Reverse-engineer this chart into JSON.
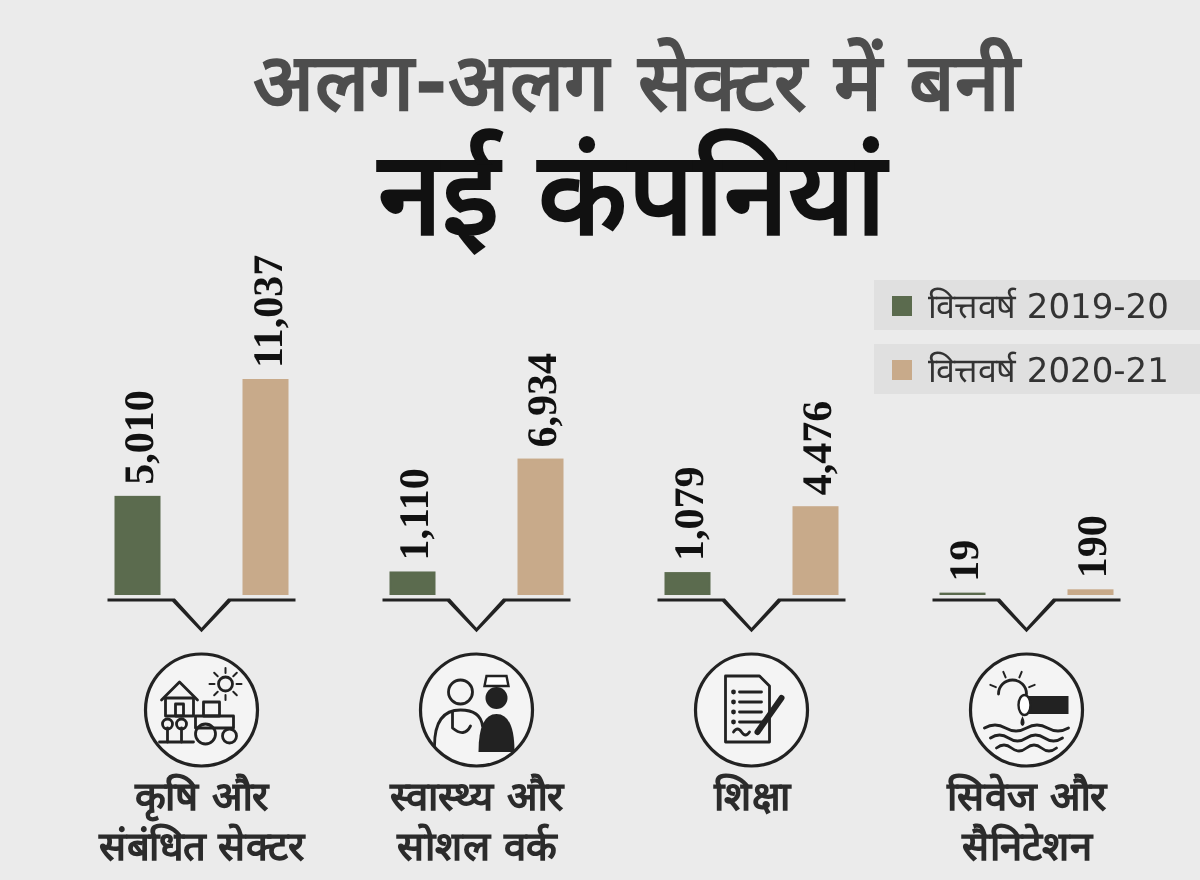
{
  "chart_data": {
    "type": "bar",
    "subtitle": "अलग-अलग सेक्टर में बनी",
    "title": "नई कंपनियां",
    "categories": [
      "कृषि और संबंधित सेक्टर",
      "स्वास्थ्य और सोशल वर्क",
      "शिक्षा",
      "सिवेज और सैनिटेशन"
    ],
    "series": [
      {
        "name": "वित्तवर्ष 2019-20",
        "color": "#5b6b4e",
        "values": [
          5010,
          1110,
          1079,
          19
        ],
        "value_labels": [
          "5,010",
          "1,110",
          "1,079",
          "19"
        ]
      },
      {
        "name": "वित्तवर्ष 2020-21",
        "color": "#c8aa8a",
        "values": [
          11037,
          6934,
          4476,
          190
        ],
        "value_labels": [
          "11,037",
          "6,934",
          "4,476",
          "190"
        ]
      }
    ],
    "legend": "top right"
  }
}
